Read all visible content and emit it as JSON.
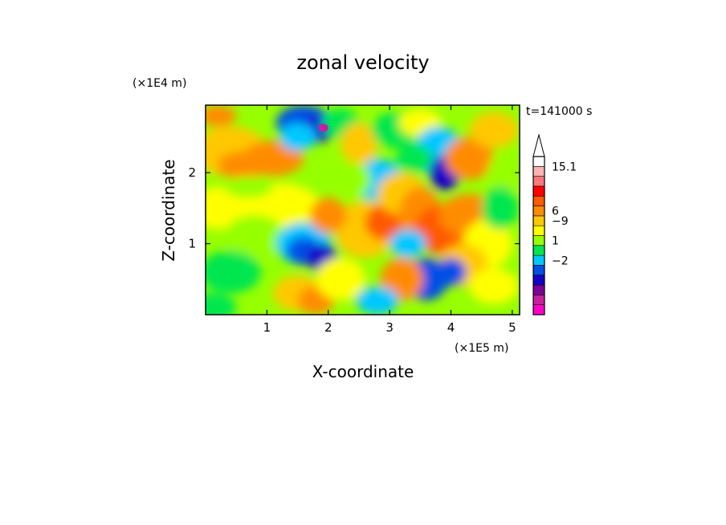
{
  "chart_data": {
    "type": "heatmap",
    "title": "zonal velocity",
    "xlabel": "X-coordinate",
    "ylabel": "Z-coordinate",
    "x_unit": "(×1E5 m)",
    "y_unit": "(×1E4 m)",
    "time_label": "t=141000 s",
    "xlim": [
      0,
      5.12
    ],
    "ylim": [
      0,
      2.95
    ],
    "x_ticks": [
      1,
      2,
      3,
      4,
      5
    ],
    "x_tick_labels": [
      "1",
      "2",
      "3",
      "4",
      "5"
    ],
    "y_ticks": [
      1,
      2
    ],
    "y_tick_labels": [
      "1",
      "2"
    ],
    "colorbar": {
      "colors": [
        "#ff00c8",
        "#c81ea0",
        "#7d009b",
        "#1400c8",
        "#0050e6",
        "#00c8ff",
        "#00e650",
        "#96ff00",
        "#ffff00",
        "#ffc800",
        "#ff8c00",
        "#ff5a00",
        "#ff0000",
        "#ff7878",
        "#ffb4b4",
        "#ffffff"
      ],
      "labels": [
        {
          "value": -9,
          "text": "−9"
        },
        {
          "value": -2,
          "text": "−2"
        },
        {
          "value": 1,
          "text": "1"
        },
        {
          "value": 6,
          "text": "6"
        },
        {
          "value": 15.1,
          "text": "15.1"
        }
      ],
      "extend_max": true
    }
  }
}
